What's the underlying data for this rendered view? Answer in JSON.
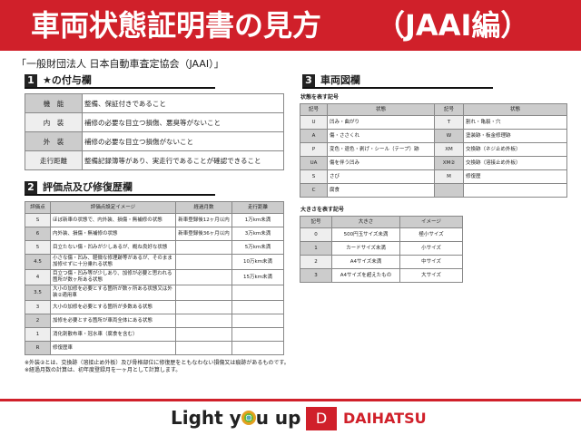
{
  "title": {
    "main": "車両状態証明書の見方",
    "suffix": "（JAAI編）"
  },
  "subtitle": "「一般財団法人 日本自動車査定協会（JAAI）」",
  "section1": {
    "num": "1",
    "title": "★の付与欄",
    "rows": [
      [
        "機　能",
        "整備、保証付きであること"
      ],
      [
        "内　装",
        "補修の必要な目立つ損傷、悪臭等がないこと"
      ],
      [
        "外　装",
        "補修の必要な目立つ損傷がないこと"
      ],
      [
        "走行距離",
        "整備記録簿等があり、実走行であることが確認できること"
      ]
    ]
  },
  "section2": {
    "num": "2",
    "title": "評価点及び修復歴欄",
    "headers": [
      "評価点",
      "評価点設定イメージ",
      "経過月数",
      "走行距離"
    ],
    "rows": [
      [
        "S",
        "ほぼ新車の状態で、内外装、損傷・無補修の状態",
        "新車登録後12ヶ月以内",
        "1万km未満"
      ],
      [
        "6",
        "内外装、損傷・無補修の状態",
        "新車登録後36ヶ月以内",
        "3万km未満"
      ],
      [
        "5",
        "目立たない傷・凹みが少しあるが、概ね良好な状態",
        "",
        "5万km未満"
      ],
      [
        "4.5",
        "小さな傷・凹み、軽微な修理跡等があるが、そのまま加修せずに十分乗れる状態",
        "",
        "10万km未満"
      ],
      [
        "4",
        "目立つ傷・凹み等が少しあり、加修が必要と思われる箇所が数ヶ所ある状態",
        "",
        "15万km未満"
      ],
      [
        "3.5",
        "大小の加修を必要とする箇所が数ヶ所ある状態又は外装②適用車",
        "",
        ""
      ],
      [
        "3",
        "大小の加修を必要とする箇所が多数ある状態",
        "",
        ""
      ],
      [
        "2",
        "加修を必要とする箇所が車両全体にある状態",
        "",
        ""
      ],
      [
        "1",
        "消化剤散布車・冠水車（腐食を含む）",
        "",
        ""
      ],
      [
        "R",
        "修復歴車",
        "",
        ""
      ]
    ]
  },
  "notes": [
    "※外装②とは、交換跡（溶接止め外板）及び骨格部位に修復歴をともなわない損傷又は痕跡があるものです。",
    "※経過月数の計算は、初年度登録月を一ヶ月として計算します。"
  ],
  "section3": {
    "num": "3",
    "title": "車両図欄",
    "state_label": "状態を表す記号",
    "state_headers": [
      "記号",
      "状態",
      "記号",
      "状態"
    ],
    "state_rows": [
      [
        "U",
        "凹み・曲がり",
        "T",
        "割れ・亀裂・穴"
      ],
      [
        "A",
        "傷・ささくれ",
        "W",
        "塗装跡・板金修理跡"
      ],
      [
        "P",
        "変色・退色・剥げ・シール（テープ）跡",
        "XM",
        "交換跡（ネジ止め外板）"
      ],
      [
        "UA",
        "傷を伴う凹み",
        "XM②",
        "交換跡（溶接止め外板）"
      ],
      [
        "S",
        "さび",
        "M",
        "修復歴"
      ],
      [
        "C",
        "腐食",
        "",
        ""
      ]
    ],
    "size_label": "大きさを表す記号",
    "size_headers": [
      "記号",
      "大きさ",
      "イメージ"
    ],
    "size_rows": [
      [
        "0",
        "500円玉サイズ未満",
        "極小サイズ"
      ],
      [
        "1",
        "カードサイズ未満",
        "小サイズ"
      ],
      [
        "2",
        "A4サイズ未満",
        "中サイズ"
      ],
      [
        "3",
        "A4サイズを超えたもの",
        "大サイズ"
      ]
    ]
  },
  "footer": {
    "slogan_a": "Light y",
    "slogan_b": "u up",
    "brand": "DAIHATSU"
  },
  "colors": {
    "brand_red": "#d0202a"
  }
}
